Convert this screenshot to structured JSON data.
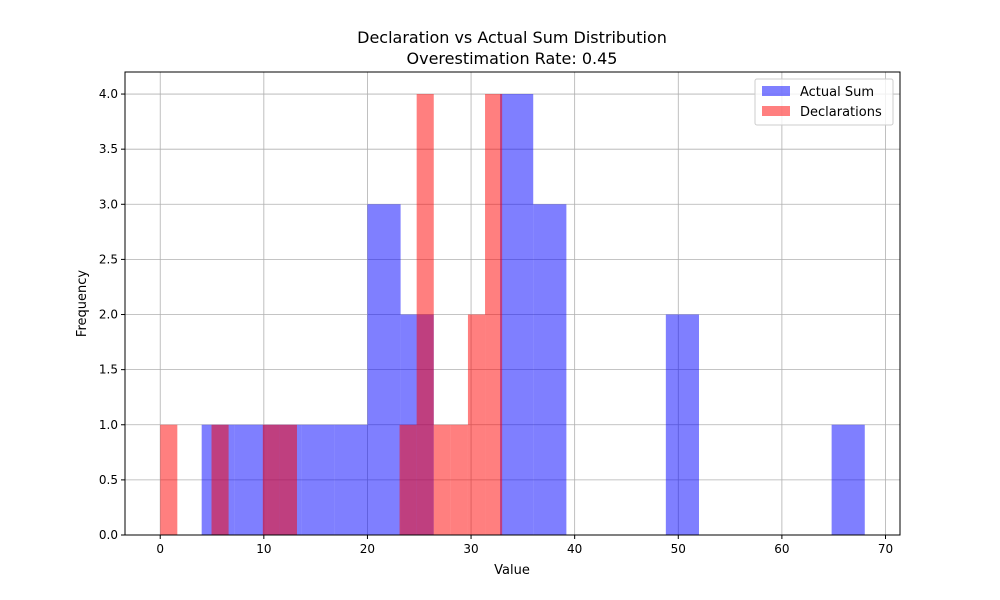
{
  "chart_data": {
    "type": "bar",
    "subtype": "overlapping-histogram",
    "title": "Declaration vs Actual Sum Distribution",
    "subtitle": "Overestimation Rate: 0.45",
    "xlabel": "Value",
    "ylabel": "Frequency",
    "xlim": [
      -3.4,
      71.4
    ],
    "ylim": [
      0,
      4.2
    ],
    "xticks": [
      0,
      10,
      20,
      30,
      40,
      50,
      60,
      70
    ],
    "yticks": [
      0.0,
      0.5,
      1.0,
      1.5,
      2.0,
      2.5,
      3.0,
      3.5,
      4.0
    ],
    "ytick_labels": [
      "0.0",
      "0.5",
      "1.0",
      "1.5",
      "2.0",
      "2.5",
      "3.0",
      "3.5",
      "4.0"
    ],
    "grid": true,
    "legend_position": "top-right",
    "series": [
      {
        "name": "Actual Sum",
        "color": "#0000ff",
        "opacity": 0.5,
        "bin_edges": [
          4,
          7.2,
          10.4,
          13.6,
          16.8,
          20,
          23.2,
          26.4,
          29.6,
          32.8,
          36,
          39.2,
          42.4,
          45.6,
          48.8,
          52,
          55.2,
          58.4,
          61.6,
          64.8,
          68
        ],
        "counts": [
          1,
          1,
          1,
          1,
          1,
          3,
          2,
          0,
          0,
          4,
          3,
          0,
          0,
          0,
          2,
          0,
          0,
          0,
          0,
          1
        ]
      },
      {
        "name": "Declarations",
        "color": "#ff0000",
        "opacity": 0.5,
        "bin_edges": [
          0,
          1.65,
          3.3,
          4.95,
          6.6,
          8.25,
          9.9,
          11.55,
          13.2,
          14.85,
          16.5,
          18.15,
          19.8,
          21.45,
          23.1,
          24.75,
          26.4,
          28.05,
          29.7,
          31.35,
          33
        ],
        "counts": [
          1,
          0,
          0,
          1,
          0,
          0,
          1,
          1,
          0,
          0,
          0,
          0,
          0,
          0,
          1,
          4,
          1,
          1,
          2,
          4
        ]
      }
    ]
  }
}
